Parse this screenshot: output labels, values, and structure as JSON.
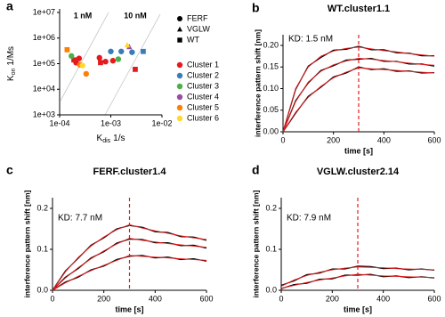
{
  "chart_data": [
    {
      "type": "scatter",
      "panel": "a",
      "log": true,
      "x_label": {
        "symbol": "K",
        "subscript": "dis",
        "unit": "1/s"
      },
      "y_label": {
        "symbol": "K",
        "subscript": "on",
        "unit": "1/Ms"
      },
      "xlim": [
        0.0001,
        0.01
      ],
      "ylim": [
        1000,
        10000000
      ],
      "xticks": [
        {
          "value": 0.0001,
          "label": "1e-04"
        },
        {
          "value": 0.001,
          "label": "1e-03"
        },
        {
          "value": 0.01,
          "label": "1e-02"
        }
      ],
      "yticks": [
        {
          "value": 1000,
          "label": "1e+03"
        },
        {
          "value": 10000,
          "label": "1e+04"
        },
        {
          "value": 100000,
          "label": "1e+05"
        },
        {
          "value": 1000000,
          "label": "1e+06"
        },
        {
          "value": 10000000,
          "label": "1e+07"
        }
      ],
      "annotations": [
        "1 nM",
        "10 nM"
      ],
      "markers": [
        {
          "name": "FERF",
          "shape": "circle"
        },
        {
          "name": "VGLW",
          "shape": "triangle"
        },
        {
          "name": "WT",
          "shape": "square"
        }
      ],
      "series": [
        {
          "name": "Cluster 1",
          "color": "#e41a1c",
          "x": [
            0.00019,
            0.00021,
            0.00024,
            0.0006,
            0.00063,
            0.00079,
            0.0011,
            0.003
          ],
          "values": [
            140000,
            110000,
            160000,
            170000,
            110000,
            120000,
            130000,
            60000
          ],
          "marker": [
            2,
            0,
            0,
            0,
            2,
            0,
            0,
            2
          ]
        },
        {
          "name": "Cluster 2",
          "color": "#377eb8",
          "x": [
            0.001,
            0.0016,
            0.0026,
            0.0043
          ],
          "values": [
            300000,
            300000,
            280000,
            300000
          ],
          "marker": [
            0,
            0,
            0,
            2
          ]
        },
        {
          "name": "Cluster 3",
          "color": "#4daf4a",
          "x": [
            0.00017,
            0.0014
          ],
          "values": [
            200000,
            150000
          ],
          "marker": [
            0,
            0
          ]
        },
        {
          "name": "Cluster 4",
          "color": "#984ea3",
          "x": [
            0.0023
          ],
          "values": [
            450000
          ],
          "marker": [
            1
          ]
        },
        {
          "name": "Cluster 5",
          "color": "#ff7f00",
          "x": [
            0.00014,
            0.00025,
            0.00033
          ],
          "values": [
            350000,
            90000,
            40000
          ],
          "marker": [
            2,
            0,
            0
          ]
        },
        {
          "name": "Cluster 6",
          "color": "#ffd92f",
          "x": [
            0.00028,
            0.0021
          ],
          "values": [
            85000,
            530000
          ],
          "marker": [
            0,
            1
          ]
        }
      ]
    },
    {
      "type": "line",
      "panel": "b",
      "title": "WT.cluster1.1",
      "annotation": "KD: 1.5 nM",
      "x_label": "time [s]",
      "y_label": "interference pattern shift [nm]",
      "xlim": [
        0,
        600
      ],
      "ylim": [
        0,
        0.2
      ],
      "xticks": [
        0,
        200,
        400,
        600
      ],
      "yticks": [
        {
          "value": 0,
          "label": "0.00"
        },
        0.05,
        {
          "value": 0.1,
          "label": "0.10"
        },
        0.15,
        {
          "value": 0.2,
          "label": "0.20"
        }
      ],
      "vline": {
        "value": 300,
        "color": "#e41a1c"
      },
      "x": [
        0,
        50,
        100,
        150,
        200,
        250,
        300,
        350,
        400,
        450,
        500,
        550,
        600
      ],
      "series": [
        {
          "color": "#000000",
          "values": [
            0,
            0.098,
            0.152,
            0.172,
            0.189,
            0.191,
            0.198,
            0.19,
            0.19,
            0.183,
            0.182,
            0.176,
            0.176
          ]
        },
        {
          "color": "#000000",
          "values": [
            0,
            0.072,
            0.113,
            0.142,
            0.153,
            0.166,
            0.168,
            0.17,
            0.163,
            0.163,
            0.157,
            0.157,
            0.152
          ]
        },
        {
          "color": "#000000",
          "values": [
            0,
            0.043,
            0.082,
            0.103,
            0.127,
            0.136,
            0.15,
            0.144,
            0.146,
            0.14,
            0.141,
            0.136,
            0.137
          ]
        },
        {
          "color": "#e41a1c",
          "values": [
            0,
            0.1,
            0.15,
            0.175,
            0.187,
            0.193,
            0.196,
            0.192,
            0.188,
            0.185,
            0.181,
            0.178,
            0.175
          ]
        },
        {
          "color": "#e41a1c",
          "values": [
            0,
            0.07,
            0.115,
            0.14,
            0.155,
            0.164,
            0.17,
            0.168,
            0.165,
            0.162,
            0.159,
            0.156,
            0.154
          ]
        },
        {
          "color": "#e41a1c",
          "values": [
            0,
            0.045,
            0.08,
            0.105,
            0.125,
            0.138,
            0.148,
            0.146,
            0.144,
            0.142,
            0.14,
            0.138,
            0.136
          ]
        }
      ]
    },
    {
      "type": "line",
      "panel": "c",
      "title": "FERF.cluster1.4",
      "annotation": "KD: 7.7 nM",
      "x_label": "time [s]",
      "y_label": "interference pattern shift [nm]",
      "xlim": [
        0,
        600
      ],
      "ylim": [
        0,
        0.2
      ],
      "xticks": [
        0,
        200,
        400,
        600
      ],
      "yticks": [
        {
          "value": 0,
          "label": "0.0"
        },
        0.1,
        0.2
      ],
      "vline": {
        "value": 300,
        "color": "#e41a1c"
      },
      "x": [
        0,
        50,
        100,
        150,
        200,
        250,
        300,
        350,
        400,
        450,
        500,
        550,
        600
      ],
      "series": [
        {
          "color": "#000000",
          "values": [
            0,
            0.047,
            0.078,
            0.11,
            0.128,
            0.15,
            0.158,
            0.154,
            0.143,
            0.141,
            0.131,
            0.13,
            0.122
          ]
        },
        {
          "color": "#000000",
          "values": [
            0,
            0.032,
            0.053,
            0.079,
            0.094,
            0.115,
            0.125,
            0.124,
            0.116,
            0.116,
            0.109,
            0.11,
            0.103
          ]
        },
        {
          "color": "#000000",
          "values": [
            0,
            0.02,
            0.032,
            0.05,
            0.059,
            0.075,
            0.083,
            0.085,
            0.079,
            0.081,
            0.075,
            0.077,
            0.071
          ]
        },
        {
          "color": "#e41a1c",
          "values": [
            0,
            0.045,
            0.08,
            0.108,
            0.13,
            0.148,
            0.16,
            0.152,
            0.145,
            0.139,
            0.133,
            0.128,
            0.124
          ]
        },
        {
          "color": "#e41a1c",
          "values": [
            0,
            0.03,
            0.055,
            0.077,
            0.096,
            0.113,
            0.127,
            0.122,
            0.118,
            0.114,
            0.111,
            0.108,
            0.105
          ]
        },
        {
          "color": "#e41a1c",
          "values": [
            0,
            0.018,
            0.034,
            0.048,
            0.061,
            0.073,
            0.085,
            0.083,
            0.081,
            0.079,
            0.077,
            0.075,
            0.073
          ]
        }
      ]
    },
    {
      "type": "line",
      "panel": "d",
      "title": "VGLW.cluster2.14",
      "annotation": "KD: 7.9 nM",
      "x_label": "time [s]",
      "y_label": "interference pattern shift [nm]",
      "xlim": [
        0,
        600
      ],
      "ylim": [
        0,
        0.2
      ],
      "xticks": [
        0,
        200,
        400,
        600
      ],
      "yticks": [
        {
          "value": 0,
          "label": "0.0"
        },
        0.1,
        0.2
      ],
      "vline": {
        "value": 300,
        "color": "#e41a1c"
      },
      "x": [
        0,
        50,
        100,
        150,
        200,
        250,
        300,
        350,
        400,
        450,
        500,
        550,
        600
      ],
      "series": [
        {
          "color": "#000000",
          "values": [
            0.012,
            0.023,
            0.038,
            0.042,
            0.052,
            0.052,
            0.059,
            0.058,
            0.053,
            0.054,
            0.05,
            0.052,
            0.049
          ]
        },
        {
          "color": "#000000",
          "values": [
            0.004,
            0.014,
            0.017,
            0.027,
            0.028,
            0.037,
            0.037,
            0.039,
            0.033,
            0.035,
            0.031,
            0.033,
            0.03
          ]
        },
        {
          "color": "#e41a1c",
          "values": [
            0.01,
            0.025,
            0.036,
            0.044,
            0.05,
            0.054,
            0.057,
            0.056,
            0.055,
            0.053,
            0.052,
            0.051,
            0.05
          ]
        },
        {
          "color": "#e41a1c",
          "values": [
            0.005,
            0.012,
            0.019,
            0.025,
            0.03,
            0.035,
            0.039,
            0.037,
            0.035,
            0.034,
            0.033,
            0.032,
            0.031
          ]
        }
      ]
    }
  ]
}
